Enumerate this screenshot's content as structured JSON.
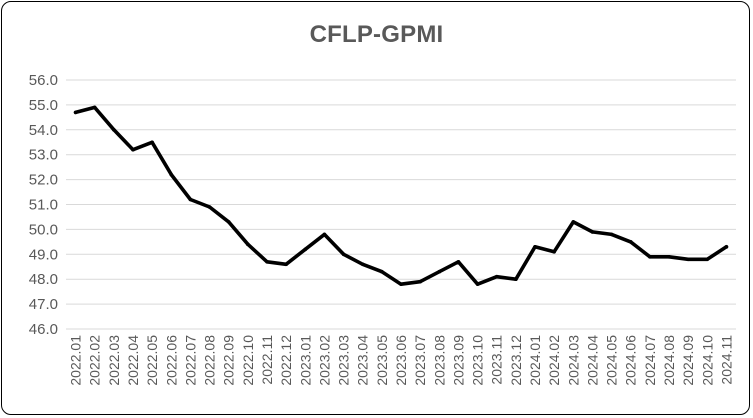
{
  "chart_data": {
    "type": "line",
    "title": "CFLP-GPMI",
    "xlabel": "",
    "ylabel": "",
    "ylim": [
      46.0,
      56.0
    ],
    "y_ticks": [
      "46.0",
      "47.0",
      "48.0",
      "49.0",
      "50.0",
      "51.0",
      "52.0",
      "53.0",
      "54.0",
      "55.0",
      "56.0"
    ],
    "grid": true,
    "legend": "none",
    "categories": [
      "2022.01",
      "2022.02",
      "2022.03",
      "2022.04",
      "2022.05",
      "2022.06",
      "2022.07",
      "2022.08",
      "2022.09",
      "2022.10",
      "2022.11",
      "2022.12",
      "2023.01",
      "2023.02",
      "2023.03",
      "2023.04",
      "2023.05",
      "2023.06",
      "2023.07",
      "2023.08",
      "2023.09",
      "2023.10",
      "2023.11",
      "2023.12",
      "2024.01",
      "2024.02",
      "2024.03",
      "2024.04",
      "2024.05",
      "2024.06",
      "2024.07",
      "2024.08",
      "2024.09",
      "2024.10",
      "2024.11"
    ],
    "series": [
      {
        "values": [
          54.7,
          54.9,
          54.0,
          53.2,
          53.5,
          52.2,
          51.2,
          50.9,
          50.3,
          49.4,
          48.7,
          48.6,
          49.2,
          49.8,
          49.0,
          48.6,
          48.3,
          47.8,
          47.9,
          48.3,
          48.7,
          47.8,
          48.1,
          48.0,
          49.3,
          49.1,
          50.3,
          49.9,
          49.8,
          49.5,
          48.9,
          48.9,
          48.8,
          48.8,
          49.3
        ],
        "color": "#000000"
      }
    ],
    "colors": {
      "line": "#000000",
      "grid": "#d9d9d9",
      "text": "#595959"
    }
  }
}
